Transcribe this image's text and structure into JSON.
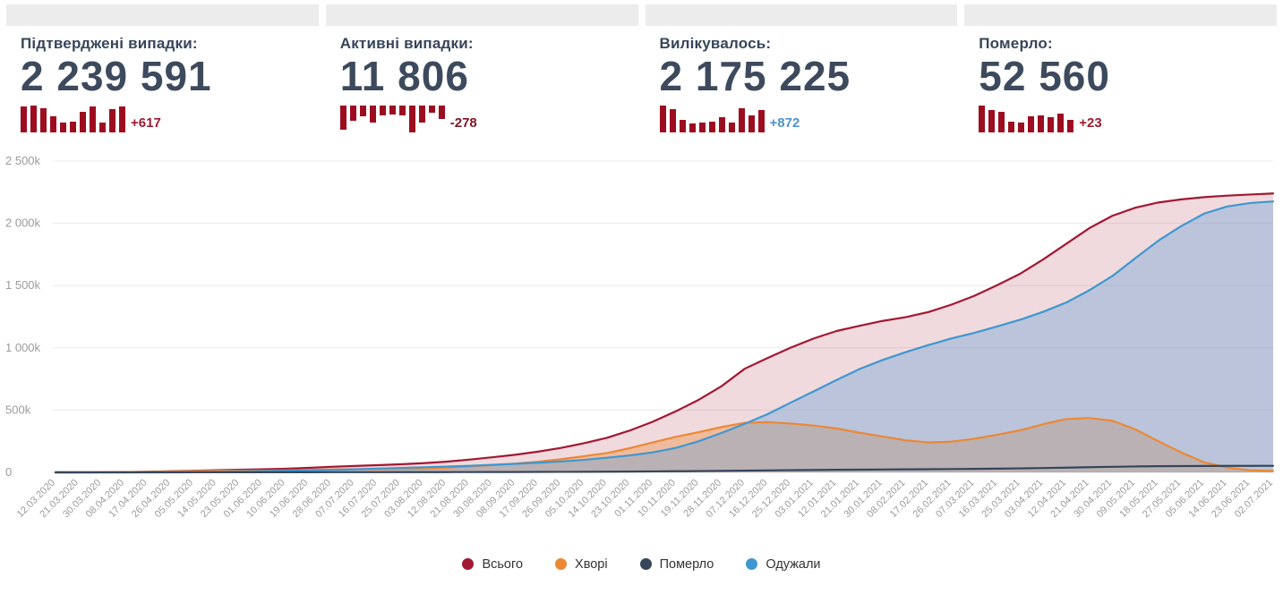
{
  "page": {
    "background": "#ffffff"
  },
  "cards": [
    {
      "title": "Підтверджені випадки:",
      "value": "2 239 591",
      "delta": "+617",
      "delta_color": "#9c1b2e",
      "spark_color": "#9c0d20",
      "spark_inverted": false,
      "spark": [
        0.95,
        1,
        0.9,
        0.55,
        0.3,
        0.35,
        0.75,
        0.95,
        0.3,
        0.85,
        0.95
      ]
    },
    {
      "title": "Активні випадки:",
      "value": "11 806",
      "delta": "-278",
      "delta_color": "#7c1626",
      "spark_color": "#9c0d20",
      "spark_inverted": true,
      "spark": [
        0.9,
        0.5,
        0.35,
        0.6,
        0.3,
        0.25,
        0.3,
        1,
        0.6,
        0.2,
        0.45
      ]
    },
    {
      "title": "Вилікувалось:",
      "value": "2 175 225",
      "delta": "+872",
      "delta_color": "#4f93ce",
      "spark_color": "#9c0d20",
      "spark_inverted": false,
      "spark": [
        1,
        0.85,
        0.4,
        0.25,
        0.3,
        0.35,
        0.5,
        0.3,
        0.9,
        0.6,
        0.8
      ]
    },
    {
      "title": "Померло:",
      "value": "52 560",
      "delta": "+23",
      "delta_color": "#9c1b2e",
      "spark_color": "#9c0d20",
      "spark_inverted": false,
      "spark": [
        1,
        0.8,
        0.75,
        0.35,
        0.3,
        0.55,
        0.6,
        0.5,
        0.65,
        0.4
      ]
    }
  ],
  "chart_data": {
    "type": "area",
    "unit": "thousands",
    "grid": true,
    "legend_position": "bottom",
    "ylim": [
      0,
      2500
    ],
    "yticks": {
      "values": [
        0,
        500,
        1000,
        1500,
        2000,
        2500
      ],
      "labels": [
        "0",
        "500k",
        "1 000k",
        "1 500k",
        "2 000k",
        "2 500k"
      ]
    },
    "x": [
      "12.03.2020",
      "21.03.2020",
      "30.03.2020",
      "08.04.2020",
      "17.04.2020",
      "26.04.2020",
      "05.05.2020",
      "14.05.2020",
      "23.05.2020",
      "01.06.2020",
      "10.06.2020",
      "19.06.2020",
      "28.06.2020",
      "07.07.2020",
      "16.07.2020",
      "25.07.2020",
      "03.08.2020",
      "12.08.2020",
      "21.08.2020",
      "30.08.2020",
      "08.09.2020",
      "17.09.2020",
      "26.09.2020",
      "05.10.2020",
      "14.10.2020",
      "23.10.2020",
      "01.11.2020",
      "10.11.2020",
      "19.11.2020",
      "28.11.2020",
      "07.12.2020",
      "16.12.2020",
      "25.12.2020",
      "03.01.2021",
      "12.01.2021",
      "21.01.2021",
      "30.01.2021",
      "08.02.2021",
      "17.02.2021",
      "26.02.2021",
      "07.03.2021",
      "16.03.2021",
      "25.03.2021",
      "03.04.2021",
      "12.04.2021",
      "21.04.2021",
      "30.04.2021",
      "09.05.2021",
      "18.05.2021",
      "27.05.2021",
      "05.06.2021",
      "14.06.2021",
      "23.06.2021",
      "02.07.2021"
    ],
    "series": [
      {
        "name": "Всього",
        "color": "#a21832",
        "fill": "rgba(162,24,50,0.16)",
        "values": [
          0.003,
          0.05,
          0.55,
          1.7,
          5,
          9,
          12.7,
          16.8,
          20.6,
          24,
          29,
          35.8,
          44.3,
          51,
          57.6,
          64.4,
          73.8,
          85.2,
          102,
          121,
          141,
          166,
          196,
          234,
          277,
          336,
          407,
          490,
          583,
          693,
          832,
          919,
          1001,
          1075,
          1135,
          1177,
          1216,
          1246,
          1287,
          1347,
          1418,
          1504,
          1596,
          1711,
          1836,
          1961,
          2060,
          2125,
          2167,
          2192,
          2210,
          2222,
          2231,
          2239.6
        ]
      },
      {
        "name": "Хворі",
        "color": "#ec8834",
        "fill": "rgba(236,136,54,0.38)",
        "values": [
          0.003,
          0.05,
          0.5,
          1.6,
          4.6,
          7.8,
          10.5,
          12.4,
          13.1,
          13.3,
          15.1,
          18.8,
          23.8,
          25.7,
          26.2,
          27.3,
          31,
          37.2,
          47.8,
          58.5,
          70.1,
          85.6,
          105,
          130,
          155,
          194,
          240,
          285,
          323,
          364,
          398,
          403,
          392,
          376,
          352,
          318,
          288,
          257,
          240,
          246,
          270,
          302,
          338,
          387,
          428,
          436,
          415,
          345,
          250,
          160,
          80,
          38,
          16,
          11.8
        ]
      },
      {
        "name": "Одужали",
        "color": "#3f97d0",
        "fill": "rgba(100,160,215,0.38)",
        "values": [
          0,
          0.003,
          0.02,
          0.07,
          0.3,
          1,
          1.9,
          4,
          6.9,
          10,
          13,
          16,
          19.3,
          24,
          30,
          35.5,
          41,
          46,
          52,
          60,
          68,
          77,
          87,
          100,
          117,
          136,
          160,
          196,
          250,
          317,
          390,
          468,
          560,
          650,
          742,
          830,
          902,
          965,
          1022,
          1075,
          1120,
          1172,
          1226,
          1290,
          1364,
          1462,
          1576,
          1720,
          1860,
          1978,
          2078,
          2135,
          2163,
          2175.2
        ]
      },
      {
        "name": "Померло",
        "color": "#36455a",
        "fill": "none",
        "values": [
          0,
          0.001,
          0.01,
          0.05,
          0.13,
          0.22,
          0.32,
          0.44,
          0.6,
          0.72,
          0.86,
          1,
          1.17,
          1.3,
          1.45,
          1.6,
          1.8,
          2,
          2.2,
          2.5,
          2.9,
          3.4,
          3.9,
          4.5,
          5.2,
          6.2,
          7.5,
          8.8,
          10.4,
          12,
          14,
          15.8,
          17.4,
          19,
          20.4,
          21.8,
          23,
          24.1,
          25.2,
          26.5,
          28,
          29.9,
          31.9,
          34.4,
          37.8,
          41.3,
          44.6,
          47.2,
          49.2,
          50.5,
          51.4,
          52,
          52.3,
          52.56
        ]
      }
    ],
    "draw_order": [
      "Всього",
      "Хворі",
      "Одужали",
      "Померло"
    ],
    "legend": [
      {
        "label": "Всього",
        "color": "#a21832"
      },
      {
        "label": "Хворі",
        "color": "#ec8834"
      },
      {
        "label": "Померло",
        "color": "#36455a"
      },
      {
        "label": "Одужали",
        "color": "#3f97d0"
      }
    ]
  }
}
